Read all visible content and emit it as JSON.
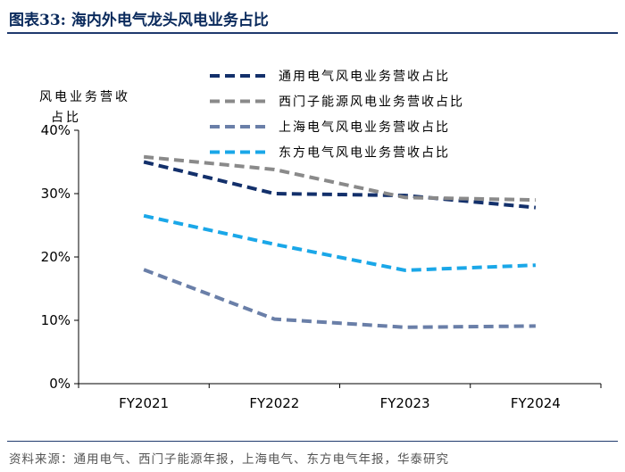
{
  "header": {
    "title": "图表33:  海内外电气龙头风电业务占比"
  },
  "footer": {
    "source": "资料来源：通用电气、西门子能源年报，上海电气、东方电气年报，华泰研究"
  },
  "colors": {
    "series": [
      "#13306b",
      "#8a8a8a",
      "#6a7fa8",
      "#1aa7e8"
    ],
    "axis": "#000000",
    "rule": "#1f3a6e"
  },
  "chart_data": {
    "type": "line",
    "title": "",
    "ylabel": "风电业务营收占比",
    "xlabel": "",
    "categories": [
      "FY2021",
      "FY2022",
      "FY2023",
      "FY2024"
    ],
    "ylim": [
      0,
      40
    ],
    "yticks": [
      "0%",
      "10%",
      "20%",
      "30%",
      "40%"
    ],
    "legend_position": "top-right",
    "series": [
      {
        "name": "通用电气风电业务营收占比",
        "values": [
          35.0,
          30.0,
          29.7,
          27.8
        ]
      },
      {
        "name": "西门子能源风电业务营收占比",
        "values": [
          35.8,
          33.8,
          29.4,
          29.0
        ]
      },
      {
        "name": "上海电气风电业务营收占比",
        "values": [
          18.0,
          10.2,
          8.9,
          9.1
        ]
      },
      {
        "name": "东方电气风电业务营收占比",
        "values": [
          26.5,
          22.0,
          17.9,
          18.7
        ]
      }
    ]
  }
}
